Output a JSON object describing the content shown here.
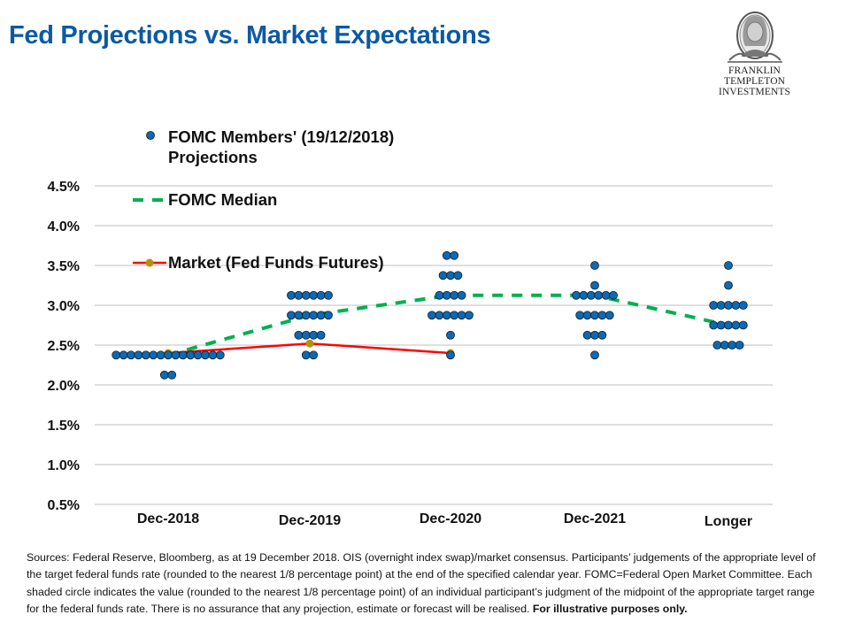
{
  "page": {
    "title": "Fed Projections vs. Market Expectations",
    "logo": {
      "icon": "benjamin-franklin-portrait-icon",
      "line1": "FRANKLIN TEMPLETON",
      "line2": "INVESTMENTS"
    },
    "footnote": {
      "text": "Sources: Federal Reserve, Bloomberg, as at 19 December 2018. OIS (overnight index swap)/market consensus. Participants’ judgements of the appropriate level of the target federal funds rate (rounded to the nearest 1/8 percentage point) at the end of the specified calendar year. FOMC=Federal Open Market Committee. Each shaded circle indicates the value (rounded to the nearest 1/8 percentage point) of an individual participant’s judgment of the midpoint of the appropriate target range for the federal funds rate. There is no assurance that any projection, estimate or forecast will be realised. ",
      "bold": "For illustrative purposes only."
    }
  },
  "chart_data": {
    "type": "scatter",
    "title": "Fed Projections vs. Market Expectations",
    "xlabel": "",
    "ylabel": "",
    "categories": [
      "Dec-2018",
      "Dec-2019",
      "Dec-2020",
      "Dec-2021",
      "Longer"
    ],
    "ylim": [
      0.5,
      4.5
    ],
    "yticks": [
      0.5,
      1.0,
      1.5,
      2.0,
      2.5,
      3.0,
      3.5,
      4.0,
      4.5
    ],
    "ytick_labels": [
      "0.5%",
      "1.0%",
      "1.5%",
      "2.0%",
      "2.5%",
      "3.0%",
      "3.5%",
      "4.0%",
      "4.5%"
    ],
    "grid": true,
    "legend_position": "top-left",
    "colors": {
      "dots": "#0a6ab7",
      "dot_outline": "#1a1a1a",
      "median": "#00b050",
      "market": "#ff0000",
      "market_marker": "#b8900a",
      "grid": "#bfbfbf",
      "title": "#0b5aa2"
    },
    "series": [
      {
        "name": "FOMC Members' (19/12/2018) Projections",
        "legend_lines": [
          "FOMC Members' (19/12/2018)",
          "Projections"
        ],
        "kind": "dots",
        "points": [
          {
            "category": "Dec-2018",
            "levels": [
              {
                "value": 2.375,
                "count": 15
              },
              {
                "value": 2.125,
                "count": 2
              }
            ]
          },
          {
            "category": "Dec-2019",
            "levels": [
              {
                "value": 3.125,
                "count": 6
              },
              {
                "value": 2.875,
                "count": 6
              },
              {
                "value": 2.625,
                "count": 4
              },
              {
                "value": 2.375,
                "count": 2
              }
            ]
          },
          {
            "category": "Dec-2020",
            "levels": [
              {
                "value": 3.625,
                "count": 2
              },
              {
                "value": 3.375,
                "count": 3
              },
              {
                "value": 3.125,
                "count": 4
              },
              {
                "value": 2.875,
                "count": 6
              },
              {
                "value": 2.625,
                "count": 1
              },
              {
                "value": 2.375,
                "count": 1
              }
            ]
          },
          {
            "category": "Dec-2021",
            "levels": [
              {
                "value": 3.5,
                "count": 1
              },
              {
                "value": 3.25,
                "count": 1
              },
              {
                "value": 3.125,
                "count": 6
              },
              {
                "value": 2.875,
                "count": 5
              },
              {
                "value": 2.625,
                "count": 3
              },
              {
                "value": 2.375,
                "count": 1
              }
            ]
          },
          {
            "category": "Longer",
            "levels": [
              {
                "value": 3.5,
                "count": 1
              },
              {
                "value": 3.25,
                "count": 1
              },
              {
                "value": 3.0,
                "count": 5
              },
              {
                "value": 2.75,
                "count": 5
              },
              {
                "value": 2.5,
                "count": 4
              }
            ]
          }
        ]
      },
      {
        "name": "FOMC Median",
        "kind": "dashed-line",
        "values": [
          2.375,
          2.875,
          3.125,
          3.125,
          2.75
        ]
      },
      {
        "name": "Market (Fed Funds Futures)",
        "kind": "line-marker",
        "values": [
          2.4,
          2.52,
          2.4,
          null,
          null
        ]
      }
    ]
  }
}
